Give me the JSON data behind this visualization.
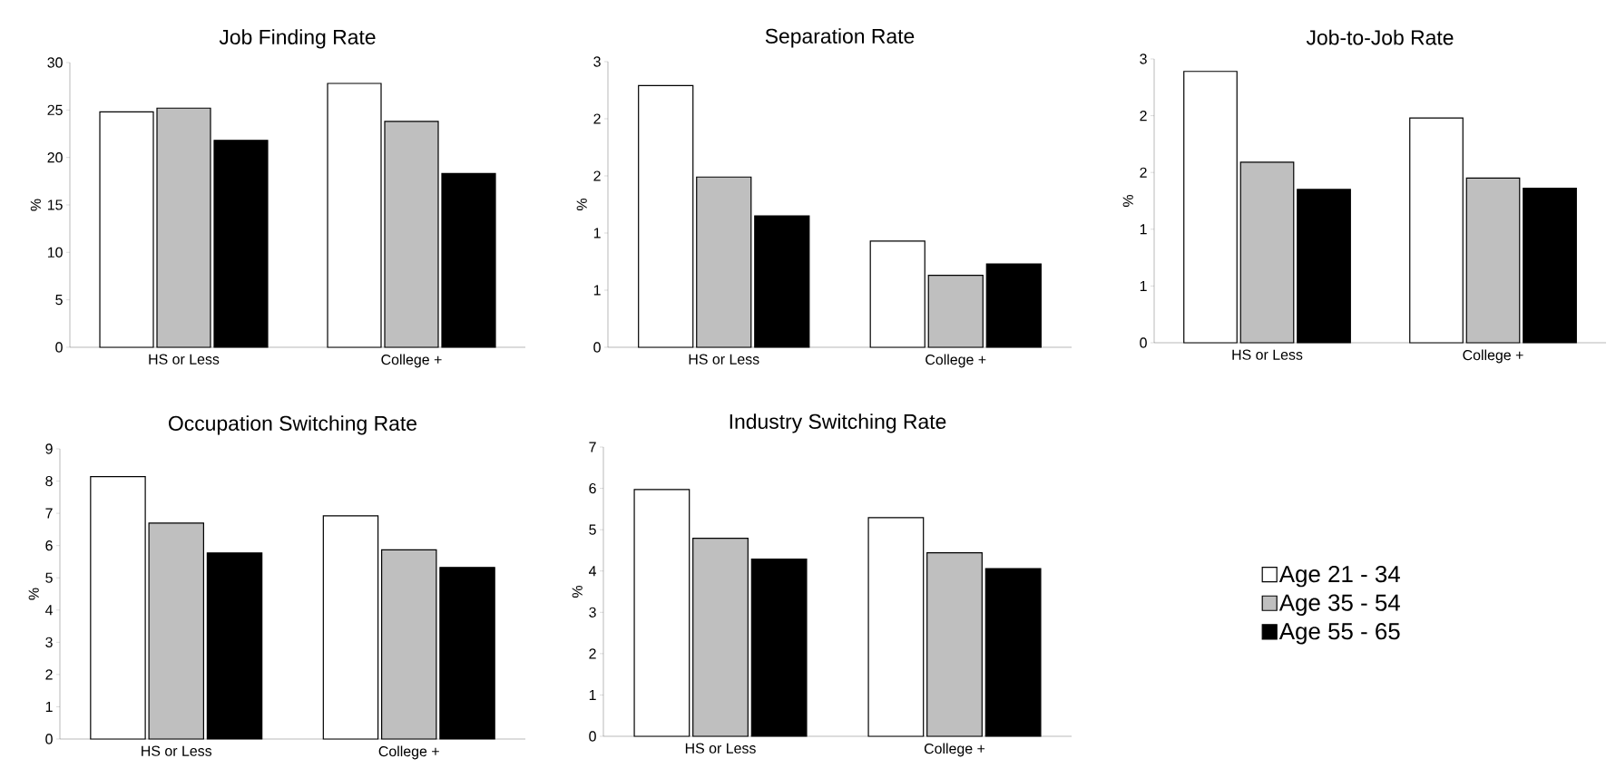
{
  "chart_data": [
    {
      "type": "bar",
      "title": "Job Finding Rate",
      "ylabel": "%",
      "categories": [
        "HS or Less",
        "College +"
      ],
      "ylim": [
        0,
        30
      ],
      "yticks": [
        0,
        5,
        10,
        15,
        20,
        25,
        30
      ],
      "grid": false,
      "legend": false,
      "series": [
        {
          "color": "#ffffff",
          "values": [
            24.8,
            27.8
          ]
        },
        {
          "color": "#bfbfbf",
          "values": [
            25.2,
            23.8
          ]
        },
        {
          "color": "#000000",
          "values": [
            21.8,
            18.3
          ]
        }
      ]
    },
    {
      "type": "bar",
      "title": "Separation Rate",
      "ylabel": "%",
      "categories": [
        "HS or Less",
        "College +"
      ],
      "ylim": [
        0,
        2.5
      ],
      "yticks": [
        0,
        {
          "value": 0.5,
          "label": "1"
        },
        1,
        {
          "value": 1.5,
          "label": "2"
        },
        2,
        {
          "value": 2.5,
          "label": "3"
        }
      ],
      "grid": false,
      "legend": false,
      "series": [
        {
          "color": "#ffffff",
          "values": [
            2.29,
            0.93
          ]
        },
        {
          "color": "#bfbfbf",
          "values": [
            1.49,
            0.63
          ]
        },
        {
          "color": "#000000",
          "values": [
            1.15,
            0.73
          ]
        }
      ]
    },
    {
      "type": "bar",
      "title": "Job-to-Job Rate",
      "ylabel": "%",
      "categories": [
        "HS or Less",
        "College +"
      ],
      "ylim": [
        0,
        2.5
      ],
      "yticks": [
        0,
        {
          "value": 0.5,
          "label": "1"
        },
        1,
        {
          "value": 1.5,
          "label": "2"
        },
        2,
        {
          "value": 2.5,
          "label": "3"
        }
      ],
      "grid": false,
      "legend": false,
      "series": [
        {
          "color": "#ffffff",
          "values": [
            2.39,
            1.98
          ]
        },
        {
          "color": "#bfbfbf",
          "values": [
            1.59,
            1.45
          ]
        },
        {
          "color": "#000000",
          "values": [
            1.35,
            1.36
          ]
        }
      ]
    },
    {
      "type": "bar",
      "title": "Occupation Switching Rate",
      "ylabel": "%",
      "categories": [
        "HS or Less",
        "College +"
      ],
      "ylim": [
        0,
        9
      ],
      "yticks": [
        0,
        1,
        2,
        3,
        4,
        5,
        6,
        7,
        8,
        9
      ],
      "grid": false,
      "legend": false,
      "series": [
        {
          "color": "#ffffff",
          "values": [
            8.14,
            6.92
          ]
        },
        {
          "color": "#bfbfbf",
          "values": [
            6.7,
            5.87
          ]
        },
        {
          "color": "#000000",
          "values": [
            5.77,
            5.32
          ]
        }
      ]
    },
    {
      "type": "bar",
      "title": "Industry Switching Rate",
      "ylabel": "%",
      "categories": [
        "HS or Less",
        "College +"
      ],
      "ylim": [
        0,
        7
      ],
      "yticks": [
        0,
        1,
        2,
        3,
        4,
        5,
        6,
        7
      ],
      "grid": false,
      "legend": "right",
      "series": [
        {
          "name": "Age 21 - 34",
          "color": "#ffffff",
          "values": [
            5.97,
            5.29
          ]
        },
        {
          "name": "Age 35 - 54",
          "color": "#bfbfbf",
          "values": [
            4.79,
            4.44
          ]
        },
        {
          "name": "Age 55 - 65",
          "color": "#000000",
          "values": [
            4.29,
            4.06
          ]
        }
      ]
    }
  ]
}
